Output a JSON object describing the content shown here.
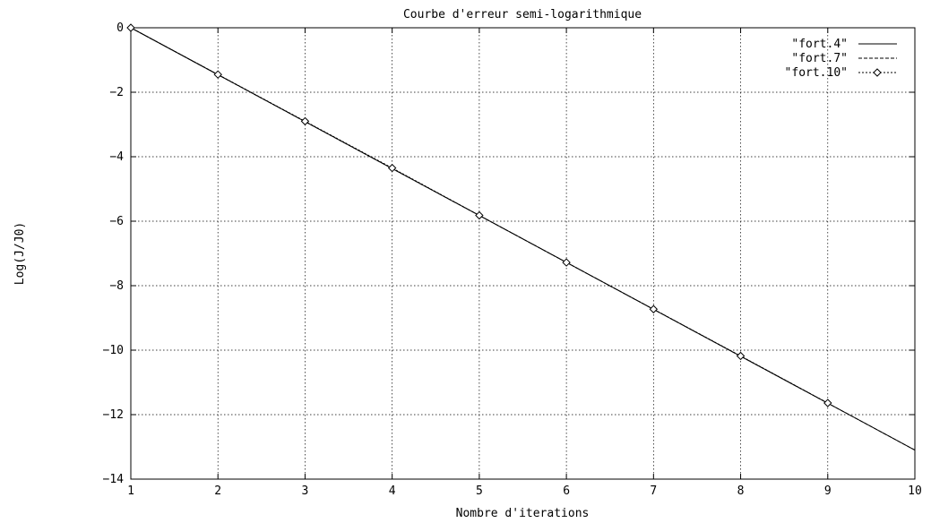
{
  "chart_data": {
    "type": "line",
    "title": "Courbe d'erreur semi-logarithmique",
    "xlabel": "Nombre d'iterations",
    "ylabel": "Log(J/J0)",
    "xlim": [
      1,
      10
    ],
    "ylim": [
      -14,
      0
    ],
    "grid": true,
    "legend_position": "top-right",
    "x_ticks": [
      "1",
      "2",
      "3",
      "4",
      "5",
      "6",
      "7",
      "8",
      "9",
      "10"
    ],
    "y_ticks": [
      "0",
      "−2",
      "−4",
      "−6",
      "−8",
      "−10",
      "−12",
      "−14"
    ],
    "series": [
      {
        "name": "\"fort.4\"",
        "style": "solid",
        "x": [
          1,
          10
        ],
        "y": [
          0,
          -13.1
        ]
      },
      {
        "name": "\"fort.7\"",
        "style": "dashed",
        "x": [
          1,
          10
        ],
        "y": [
          0,
          -13.1
        ]
      },
      {
        "name": "\"fort.10\"",
        "style": "diamonds",
        "x": [
          1,
          2,
          3,
          4,
          5,
          6,
          7,
          8,
          9
        ],
        "y": [
          0,
          -1.45,
          -2.9,
          -4.35,
          -5.82,
          -7.28,
          -8.73,
          -10.18,
          -11.64
        ]
      }
    ]
  }
}
